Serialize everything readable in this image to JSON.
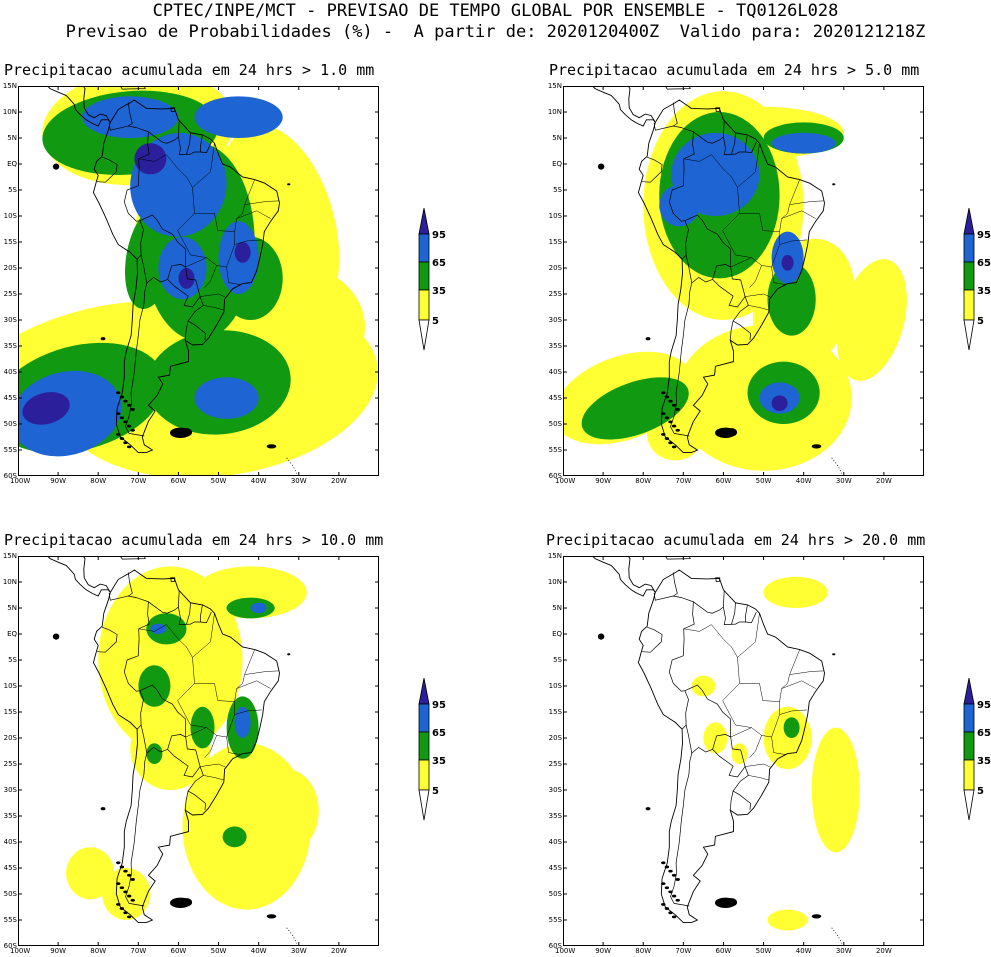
{
  "header": {
    "line1": "CPTEC/INPE/MCT - PREVISAO DE TEMPO GLOBAL POR ENSEMBLE - TQ0126L028",
    "line2": "Previsao de Probabilidades (%) -  A partir de: 2020120400Z  Valido para: 2020121218Z"
  },
  "colors": {
    "c5": "#ffff33",
    "c35": "#119911",
    "c65": "#1e64d2",
    "c95": "#2c1f9c",
    "land": "#000000",
    "frame": "#000000"
  },
  "axes": {
    "lat_labels": [
      "15N",
      "10N",
      "5N",
      "EQ",
      "5S",
      "10S",
      "15S",
      "20S",
      "25S",
      "30S",
      "35S",
      "40S",
      "45S",
      "50S",
      "55S",
      "60S"
    ],
    "lon_labels": [
      "100W",
      "90W",
      "80W",
      "70W",
      "60W",
      "50W",
      "40W",
      "30W",
      "20W"
    ],
    "lat_range": [
      -60,
      15
    ],
    "lon_range": [
      -100,
      -10
    ]
  },
  "colorbar": {
    "ticks": [
      "95",
      "65",
      "35",
      "5"
    ]
  },
  "panels": [
    {
      "title": "Precipitacao acumulada em 24 hrs > 1.0 mm",
      "threshold_mm": 1.0
    },
    {
      "title": "Precipitacao acumulada em 24 hrs > 5.0 mm",
      "threshold_mm": 5.0
    },
    {
      "title": "Precipitacao acumulada em 24 hrs > 10.0 mm",
      "threshold_mm": 10.0
    },
    {
      "title": "Precipitacao acumulada em 24 hrs > 20.0 mm",
      "threshold_mm": 20.0
    }
  ]
}
